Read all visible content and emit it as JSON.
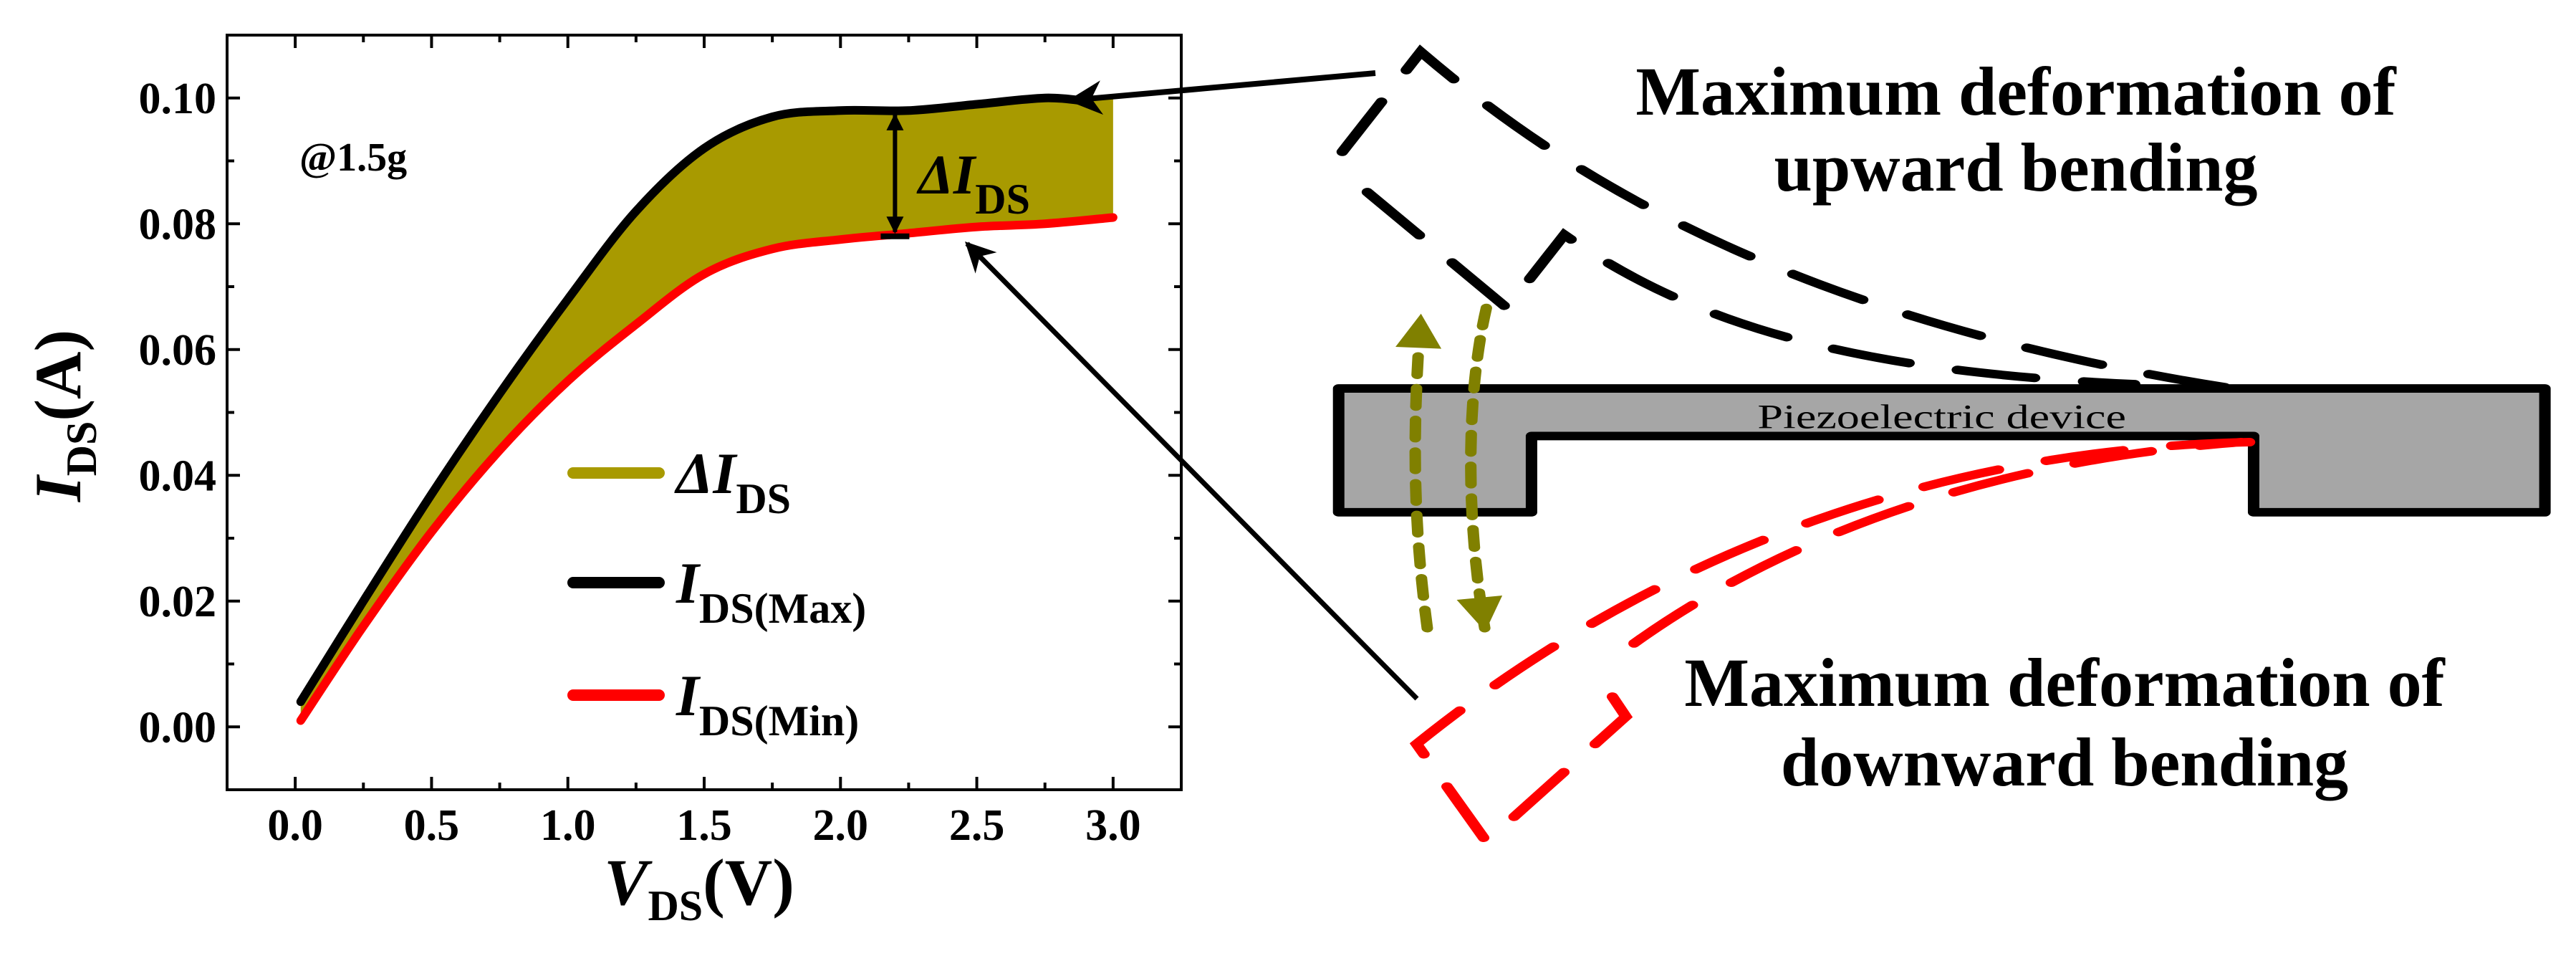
{
  "chart_data": {
    "type": "area",
    "xlabel": {
      "main": "V",
      "sub": "DS",
      "unit": "(V)"
    },
    "ylabel": {
      "main": "I",
      "sub": "DS",
      "unit": "(A)"
    },
    "xlim": [
      -0.25,
      3.25
    ],
    "ylim": [
      -0.01,
      0.11
    ],
    "xticks": [
      "0.0",
      "0.5",
      "1.0",
      "1.5",
      "2.0",
      "2.5",
      "3.0"
    ],
    "xtick_values": [
      0,
      0.5,
      1.0,
      1.5,
      2.0,
      2.5,
      3.0
    ],
    "yticks": [
      "0.00",
      "0.02",
      "0.04",
      "0.06",
      "0.08",
      "0.10"
    ],
    "ytick_values": [
      0,
      0.02,
      0.04,
      0.06,
      0.08,
      0.1
    ],
    "annotation": "@1.5g",
    "delta_label": {
      "main": "ΔI",
      "sub": "DS"
    },
    "legend_placement": "center",
    "series": [
      {
        "name": "ΔI_DS",
        "label_main": "ΔI",
        "label_sub": "DS",
        "color": "#a89a00",
        "kind": "fill-between"
      },
      {
        "name": "I_DS(Max)",
        "label_main": "I",
        "label_sub": "DS(Max)",
        "color": "#000000",
        "x": [
          0.02,
          0.25,
          0.5,
          0.75,
          1.0,
          1.25,
          1.5,
          1.75,
          2.0,
          2.25,
          2.5,
          2.75,
          2.9
        ],
        "y": [
          0.004,
          0.02,
          0.037,
          0.053,
          0.068,
          0.082,
          0.092,
          0.097,
          0.098,
          0.098,
          0.099,
          0.1,
          0.0995
        ]
      },
      {
        "name": "I_DS(Min)",
        "label_main": "I",
        "label_sub": "DS(Min)",
        "color": "#ff0000",
        "x": [
          0.02,
          0.25,
          0.5,
          0.75,
          1.0,
          1.25,
          1.5,
          1.75,
          2.0,
          2.25,
          2.5,
          2.75,
          3.0
        ],
        "y": [
          0.001,
          0.016,
          0.031,
          0.044,
          0.055,
          0.064,
          0.072,
          0.076,
          0.0775,
          0.0785,
          0.0795,
          0.08,
          0.081
        ]
      }
    ],
    "grid": false
  },
  "diagram": {
    "device_label": "Piezoelectric device",
    "upward_line1": "Maximum deformation of",
    "upward_line2": "upward bending",
    "downward_line1": "Maximum deformation of",
    "downward_line2": "downward bending",
    "device_color": "#a6a6a6",
    "upward_color": "#000000",
    "downward_color": "#ff0000",
    "arrow_color": "#808000"
  }
}
